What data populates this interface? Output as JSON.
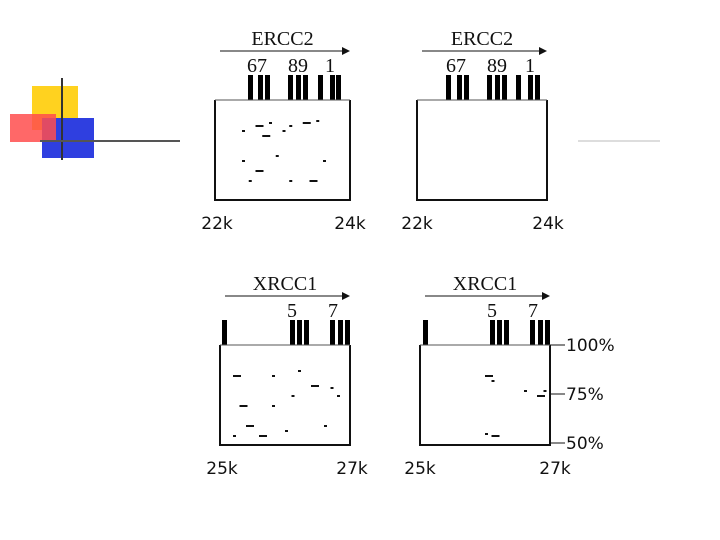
{
  "panels": [
    {
      "gene": "ERCC2",
      "exons": [
        "67",
        "89",
        "1"
      ],
      "x_labels": [
        "22k",
        "24k"
      ]
    },
    {
      "gene": "ERCC2",
      "exons": [
        "67",
        "89",
        "1"
      ],
      "x_labels": [
        "22k",
        "24k"
      ]
    },
    {
      "gene": "XRCC1",
      "exons": [
        "5",
        "7"
      ],
      "x_labels": [
        "25k",
        "27k"
      ]
    },
    {
      "gene": "XRCC1",
      "exons": [
        "5",
        "7"
      ],
      "x_labels": [
        "25k",
        "27k"
      ]
    }
  ],
  "y_labels": [
    "100%",
    "75%",
    "50%"
  ]
}
